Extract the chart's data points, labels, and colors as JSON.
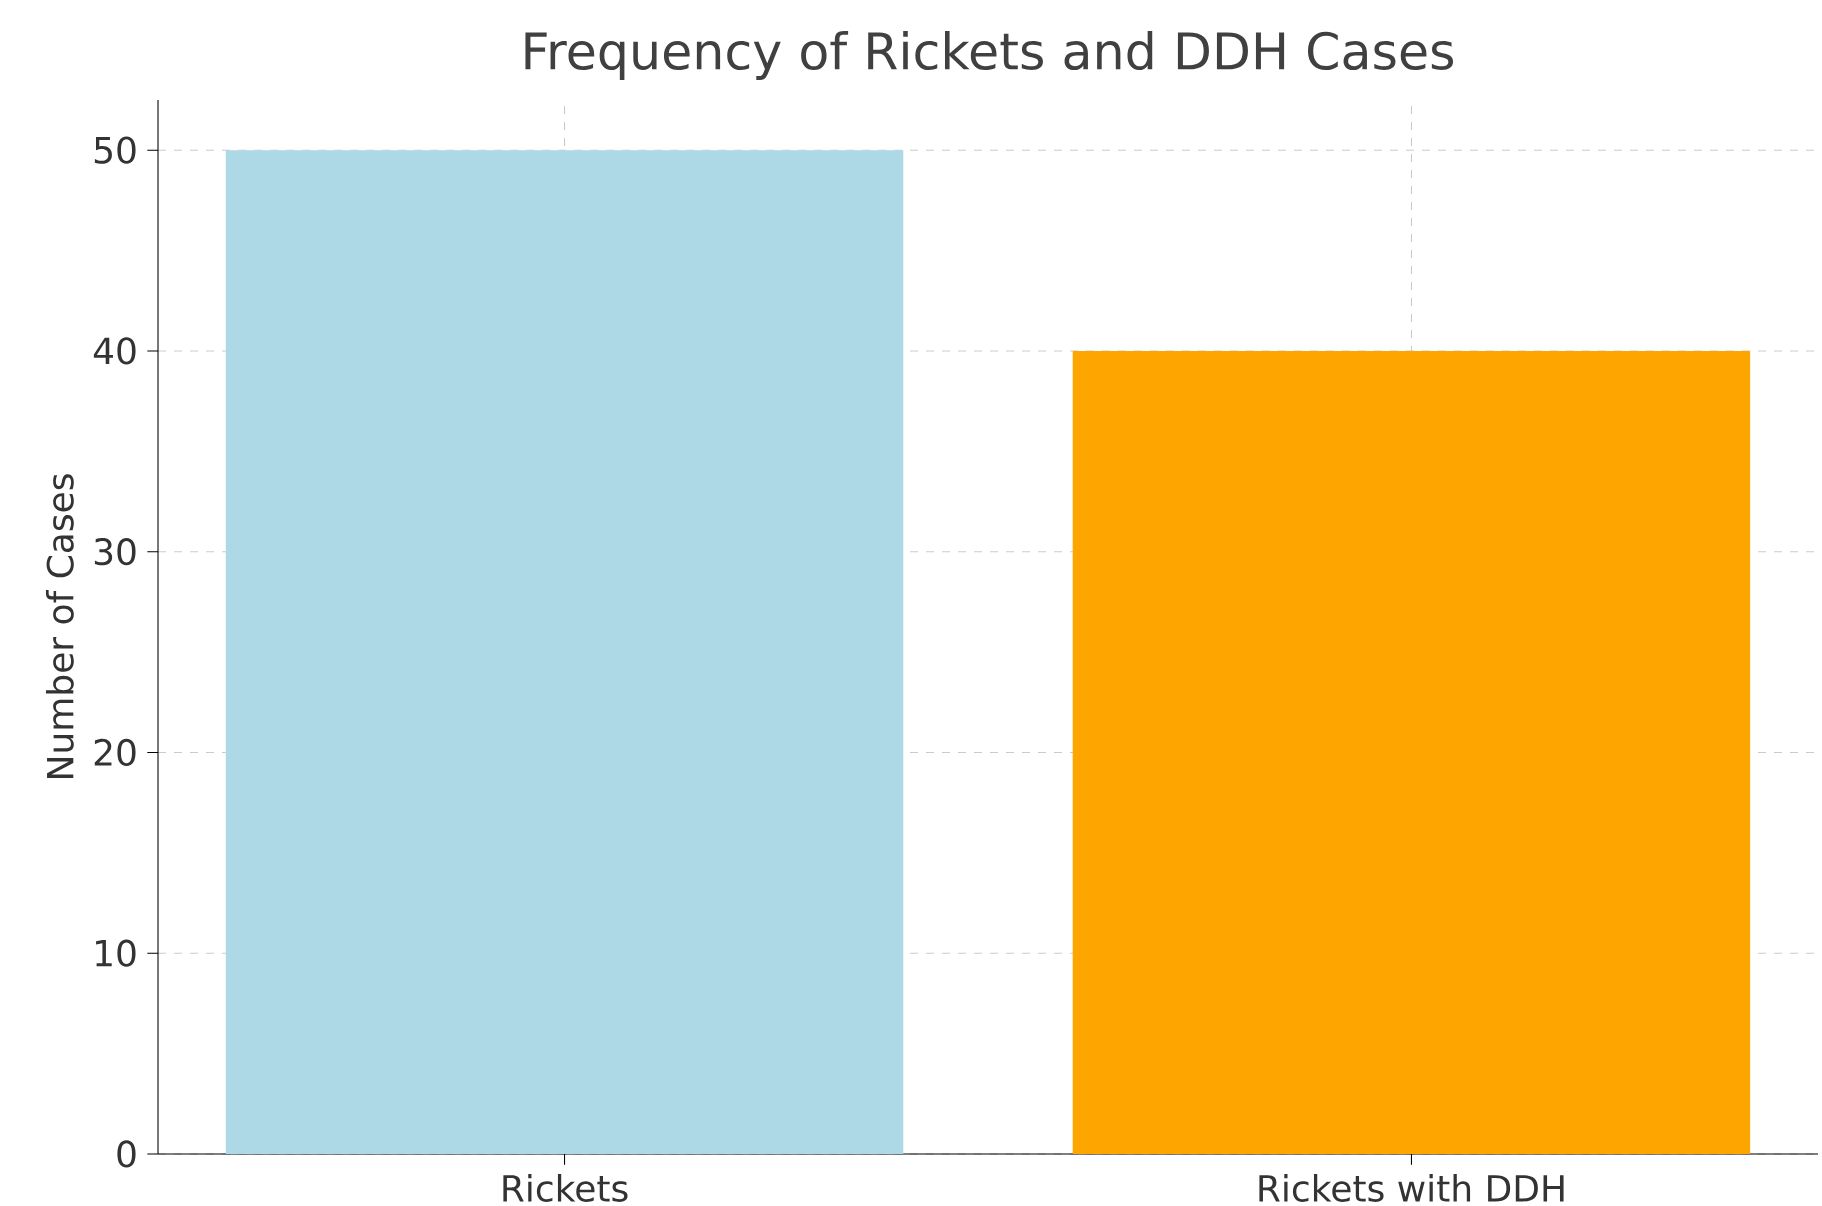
{
  "chart_data": {
    "type": "bar",
    "title": "Frequency of Rickets and DDH Cases",
    "ylabel": "Number of Cases",
    "categories": [
      "Rickets",
      "Rickets with DDH"
    ],
    "values": [
      50,
      40
    ],
    "colors": [
      "#add8e6",
      "#ffa500"
    ],
    "ylim": [
      0,
      52.5
    ],
    "yticks": [
      0,
      10,
      20,
      30,
      40,
      50
    ],
    "grid": true
  }
}
